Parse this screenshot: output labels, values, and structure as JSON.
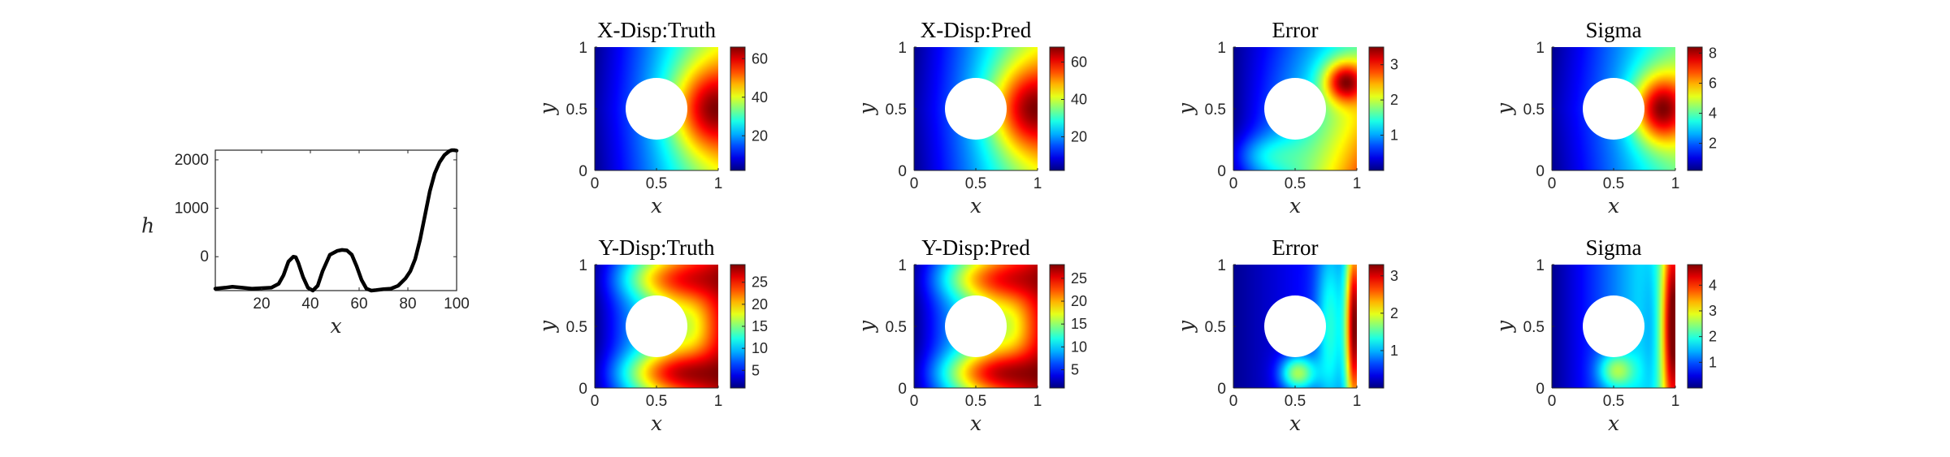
{
  "chart_data": [
    {
      "type": "line",
      "title": "",
      "xlabel": "x",
      "ylabel": "h",
      "xlim": [
        1,
        100
      ],
      "ylim": [
        -700,
        2200
      ],
      "xticks": [
        20,
        40,
        60,
        80,
        100
      ],
      "yticks": [
        0,
        1000,
        2000
      ],
      "grid": false,
      "line_color": "#000000",
      "x": [
        1,
        5,
        8,
        12,
        16,
        20,
        24,
        27,
        29,
        31,
        33,
        34,
        35,
        37,
        39,
        41,
        43,
        45,
        48,
        51,
        53,
        55,
        57,
        59,
        61,
        63,
        65,
        67,
        70,
        73,
        76,
        79,
        81,
        83,
        85,
        87,
        89,
        91,
        93,
        95,
        97,
        98,
        99,
        100
      ],
      "y": [
        -660,
        -640,
        -620,
        -640,
        -660,
        -650,
        -640,
        -560,
        -380,
        -100,
        0,
        -10,
        -120,
        -420,
        -640,
        -700,
        -600,
        -300,
        40,
        120,
        140,
        130,
        40,
        -200,
        -480,
        -660,
        -700,
        -690,
        -670,
        -660,
        -600,
        -450,
        -300,
        -50,
        350,
        850,
        1350,
        1720,
        1950,
        2100,
        2180,
        2200,
        2200,
        2190
      ]
    },
    {
      "type": "heatmap",
      "title": "X-Disp:Truth",
      "xlabel": "x",
      "ylabel": "y",
      "xlim": [
        0,
        1
      ],
      "ylim": [
        0,
        1
      ],
      "xticks": [
        0,
        0.5,
        1
      ],
      "yticks": [
        0,
        0.5,
        1
      ],
      "field": "x-displacement",
      "hole": {
        "cx": 0.5,
        "cy": 0.5,
        "r": 0.25
      },
      "colorbar_ticks": [
        20,
        40,
        60
      ],
      "clim": [
        2,
        66
      ],
      "colormap": "jet"
    },
    {
      "type": "heatmap",
      "title": "X-Disp:Pred",
      "xlabel": "x",
      "ylabel": "y",
      "xlim": [
        0,
        1
      ],
      "ylim": [
        0,
        1
      ],
      "xticks": [
        0,
        0.5,
        1
      ],
      "yticks": [
        0,
        0.5,
        1
      ],
      "field": "x-displacement",
      "hole": {
        "cx": 0.5,
        "cy": 0.5,
        "r": 0.25
      },
      "colorbar_ticks": [
        20,
        40,
        60
      ],
      "clim": [
        2,
        68
      ],
      "colormap": "jet"
    },
    {
      "type": "heatmap",
      "title": "Error",
      "xlabel": "x",
      "ylabel": "y",
      "xlim": [
        0,
        1
      ],
      "ylim": [
        0,
        1
      ],
      "xticks": [
        0,
        0.5,
        1
      ],
      "yticks": [
        0,
        0.5,
        1
      ],
      "field": "x-error",
      "hole": {
        "cx": 0.5,
        "cy": 0.5,
        "r": 0.25
      },
      "colorbar_ticks": [
        1,
        2,
        3
      ],
      "clim": [
        0,
        3.5
      ],
      "colormap": "jet"
    },
    {
      "type": "heatmap",
      "title": "Sigma",
      "xlabel": "x",
      "ylabel": "y",
      "xlim": [
        0,
        1
      ],
      "ylim": [
        0,
        1
      ],
      "xticks": [
        0,
        0.5,
        1
      ],
      "yticks": [
        0,
        0.5,
        1
      ],
      "field": "x-sigma",
      "hole": {
        "cx": 0.5,
        "cy": 0.5,
        "r": 0.25
      },
      "colorbar_ticks": [
        2,
        4,
        6,
        8
      ],
      "clim": [
        0.2,
        8.4
      ],
      "colormap": "jet"
    },
    {
      "type": "heatmap",
      "title": "Y-Disp:Truth",
      "xlabel": "x",
      "ylabel": "y",
      "xlim": [
        0,
        1
      ],
      "ylim": [
        0,
        1
      ],
      "xticks": [
        0,
        0.5,
        1
      ],
      "yticks": [
        0,
        0.5,
        1
      ],
      "field": "y-displacement",
      "hole": {
        "cx": 0.5,
        "cy": 0.5,
        "r": 0.25
      },
      "colorbar_ticks": [
        5,
        10,
        15,
        20,
        25
      ],
      "clim": [
        1,
        29
      ],
      "colormap": "jet"
    },
    {
      "type": "heatmap",
      "title": "Y-Disp:Pred",
      "xlabel": "x",
      "ylabel": "y",
      "xlim": [
        0,
        1
      ],
      "ylim": [
        0,
        1
      ],
      "xticks": [
        0,
        0.5,
        1
      ],
      "yticks": [
        0,
        0.5,
        1
      ],
      "field": "y-displacement",
      "hole": {
        "cx": 0.5,
        "cy": 0.5,
        "r": 0.25
      },
      "colorbar_ticks": [
        5,
        10,
        15,
        20,
        25
      ],
      "clim": [
        1,
        28
      ],
      "colormap": "jet"
    },
    {
      "type": "heatmap",
      "title": "Error",
      "xlabel": "x",
      "ylabel": "y",
      "xlim": [
        0,
        1
      ],
      "ylim": [
        0,
        1
      ],
      "xticks": [
        0,
        0.5,
        1
      ],
      "yticks": [
        0,
        0.5,
        1
      ],
      "field": "y-error",
      "hole": {
        "cx": 0.5,
        "cy": 0.5,
        "r": 0.25
      },
      "colorbar_ticks": [
        1,
        2,
        3
      ],
      "clim": [
        0,
        3.3
      ],
      "colormap": "jet"
    },
    {
      "type": "heatmap",
      "title": "Sigma",
      "xlabel": "x",
      "ylabel": "y",
      "xlim": [
        0,
        1
      ],
      "ylim": [
        0,
        1
      ],
      "xticks": [
        0,
        0.5,
        1
      ],
      "yticks": [
        0,
        0.5,
        1
      ],
      "field": "y-sigma",
      "hole": {
        "cx": 0.5,
        "cy": 0.5,
        "r": 0.25
      },
      "colorbar_ticks": [
        1,
        2,
        3,
        4
      ],
      "clim": [
        0,
        4.8
      ],
      "colormap": "jet"
    }
  ]
}
